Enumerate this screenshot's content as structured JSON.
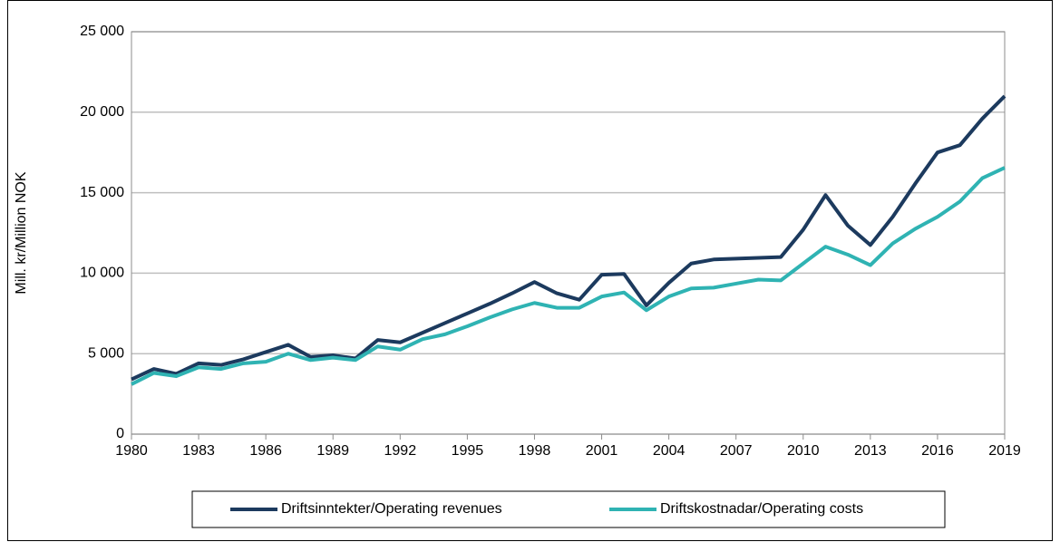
{
  "chart_data": {
    "type": "line",
    "y_label": "Mill. kr/Million NOK",
    "x": [
      1980,
      1981,
      1982,
      1983,
      1984,
      1985,
      1986,
      1987,
      1988,
      1989,
      1990,
      1991,
      1992,
      1993,
      1994,
      1995,
      1996,
      1997,
      1998,
      1999,
      2000,
      2001,
      2002,
      2003,
      2004,
      2005,
      2006,
      2007,
      2008,
      2009,
      2010,
      2011,
      2012,
      2013,
      2014,
      2015,
      2016,
      2017,
      2018,
      2019
    ],
    "series": [
      {
        "name": "Driftsinntekter/Operating revenues",
        "color": "#1c3a5e",
        "values": [
          3400,
          4050,
          3750,
          4400,
          4300,
          4650,
          5100,
          5550,
          4800,
          4900,
          4700,
          5850,
          5700,
          6300,
          6900,
          7500,
          8100,
          8750,
          9450,
          8750,
          8350,
          9900,
          9950,
          8000,
          9400,
          10600,
          10850,
          10900,
          10950,
          11000,
          12700,
          14850,
          12950,
          11750,
          13500,
          15550,
          17500,
          17950,
          19600,
          21000
        ]
      },
      {
        "name": "Driftskostnadar/Operating costs",
        "color": "#2fb3b3",
        "values": [
          3100,
          3800,
          3600,
          4150,
          4050,
          4400,
          4500,
          5000,
          4600,
          4750,
          4600,
          5450,
          5250,
          5900,
          6200,
          6700,
          7250,
          7750,
          8150,
          7850,
          7850,
          8550,
          8800,
          7700,
          8550,
          9050,
          9100,
          9350,
          9600,
          9550,
          10600,
          11650,
          11150,
          10500,
          11850,
          12750,
          13500,
          14450,
          15900,
          16550
        ]
      }
    ],
    "xlim": [
      1980,
      2019
    ],
    "xticks": [
      1980,
      1983,
      1986,
      1989,
      1992,
      1995,
      1998,
      2001,
      2004,
      2007,
      2010,
      2013,
      2016,
      2019
    ],
    "ylim": [
      0,
      25000
    ],
    "yticks": [
      0,
      {
        "value": 5000,
        "label": "5 000"
      },
      {
        "value": 10000,
        "label": "10 000"
      },
      {
        "value": 15000,
        "label": "15 000"
      },
      {
        "value": 20000,
        "label": "20 000"
      },
      {
        "value": 25000,
        "label": "25 000"
      }
    ],
    "grid": true,
    "legend": "bottom"
  }
}
